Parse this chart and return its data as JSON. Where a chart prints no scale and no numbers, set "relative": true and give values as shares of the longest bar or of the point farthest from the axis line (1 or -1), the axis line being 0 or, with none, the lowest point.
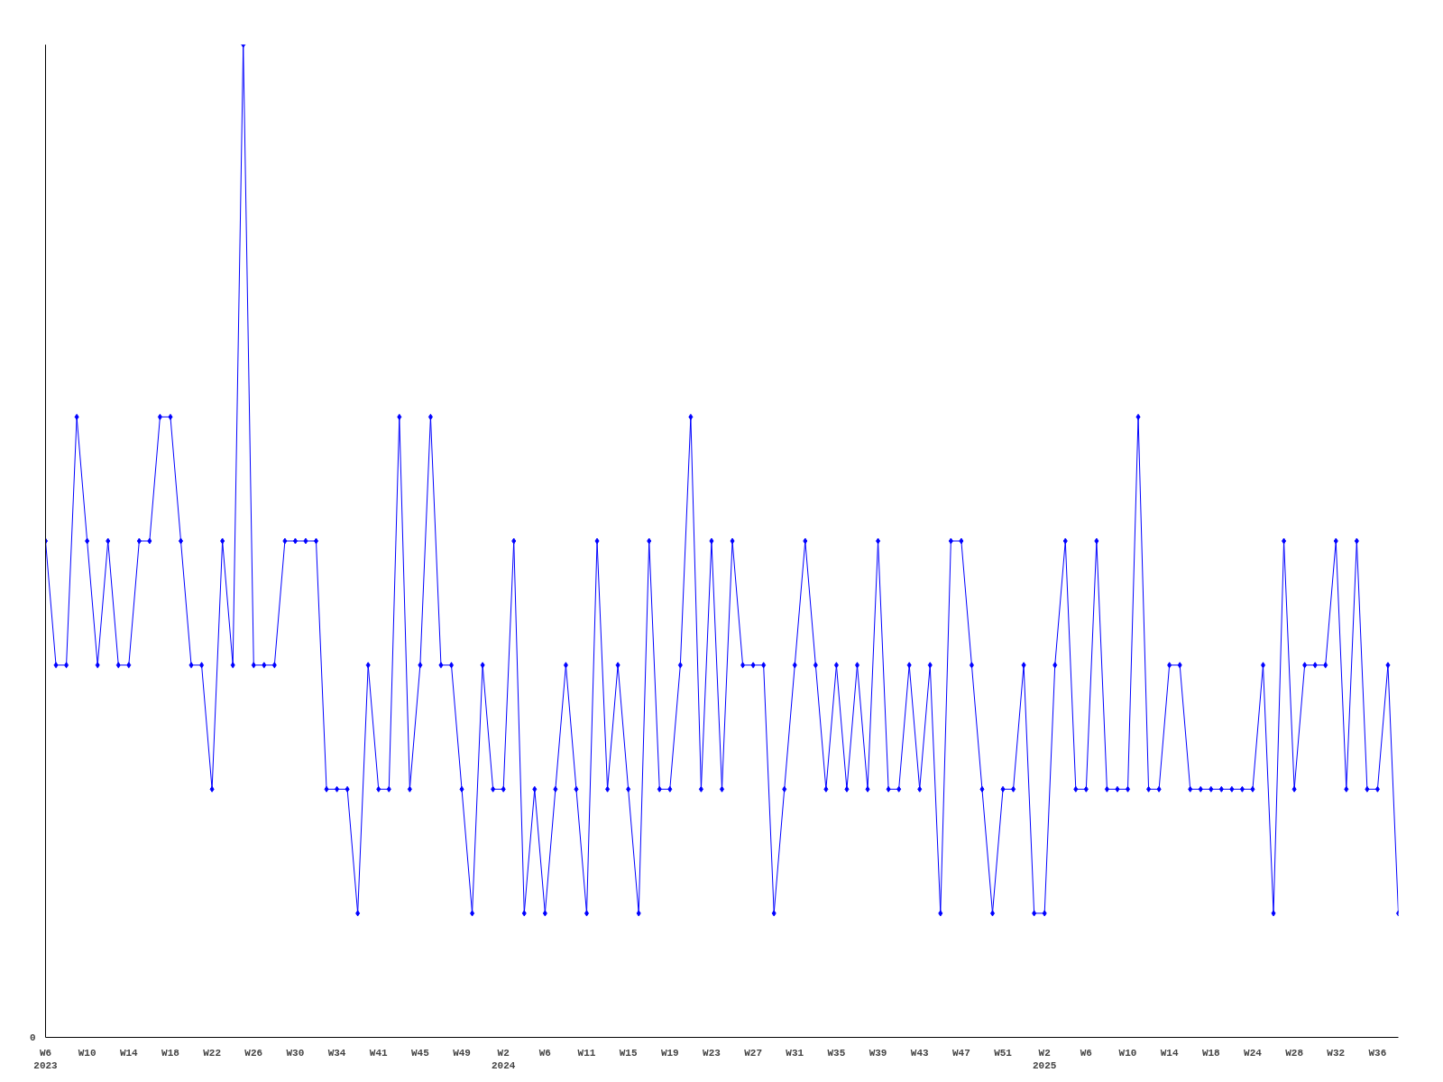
{
  "chart_data": {
    "type": "line",
    "relative": true,
    "marker": "diamond",
    "categories": [
      "W6\n2023",
      null,
      null,
      null,
      "W10",
      null,
      null,
      null,
      "W14",
      null,
      null,
      null,
      "W18",
      null,
      null,
      null,
      "W22",
      null,
      null,
      null,
      "W26",
      null,
      null,
      null,
      "W30",
      null,
      null,
      null,
      "W34",
      null,
      null,
      null,
      "W41",
      null,
      null,
      null,
      "W45",
      null,
      null,
      null,
      "W49",
      null,
      null,
      null,
      "W2\n2024",
      null,
      null,
      null,
      "W6",
      null,
      null,
      null,
      "W11",
      null,
      null,
      null,
      "W15",
      null,
      null,
      null,
      "W19",
      null,
      null,
      null,
      "W23",
      null,
      null,
      null,
      "W27",
      null,
      null,
      null,
      "W31",
      null,
      null,
      null,
      "W35",
      null,
      null,
      null,
      "W39",
      null,
      null,
      null,
      "W43",
      null,
      null,
      null,
      "W47",
      null,
      null,
      null,
      "W51",
      null,
      null,
      null,
      "W2\n2025",
      null,
      null,
      null,
      "W6",
      null,
      null,
      null,
      "W10",
      null,
      null,
      null,
      "W14",
      null,
      null,
      null,
      "W18",
      null,
      null,
      null,
      "W24",
      null,
      null,
      null,
      "W28",
      null,
      null,
      null,
      "W32",
      null,
      null,
      null,
      "W36",
      null,
      null
    ],
    "series": [
      {
        "color": "#0000ff",
        "values": [
          0.5,
          0.375,
          0.375,
          0.625,
          0.5,
          0.375,
          0.5,
          0.375,
          0.375,
          0.5,
          0.5,
          0.625,
          0.625,
          0.5,
          0.375,
          0.375,
          0.25,
          0.5,
          0.375,
          1,
          0.375,
          0.375,
          0.375,
          0.5,
          0.5,
          0.5,
          0.5,
          0.25,
          0.25,
          0.25,
          0.125,
          0.375,
          0.25,
          0.25,
          0.625,
          0.25,
          0.375,
          0.625,
          0.375,
          0.375,
          0.25,
          0.125,
          0.375,
          0.25,
          0.25,
          0.5,
          0.125,
          0.25,
          0.125,
          0.25,
          0.375,
          0.25,
          0.125,
          0.5,
          0.25,
          0.375,
          0.25,
          0.125,
          0.5,
          0.25,
          0.25,
          0.375,
          0.625,
          0.25,
          0.5,
          0.25,
          0.5,
          0.375,
          0.375,
          0.375,
          0.125,
          0.25,
          0.375,
          0.5,
          0.375,
          0.25,
          0.375,
          0.25,
          0.375,
          0.25,
          0.5,
          0.25,
          0.25,
          0.375,
          0.25,
          0.375,
          0.125,
          0.5,
          0.5,
          0.375,
          0.25,
          0.125,
          0.25,
          0.25,
          0.375,
          0.125,
          0.125,
          0.375,
          0.5,
          0.25,
          0.25,
          0.5,
          0.25,
          0.25,
          0.25,
          0.625,
          0.25,
          0.25,
          0.375,
          0.375,
          0.25,
          0.25,
          0.25,
          0.25,
          0.25,
          0.25,
          0.25,
          0.375,
          0.125,
          0.5,
          0.25,
          0.375,
          0.375,
          0.375,
          0.5,
          0.25,
          0.5,
          0.25,
          0.25,
          0.375,
          0.125
        ]
      }
    ],
    "annotations": [
      "0"
    ]
  }
}
